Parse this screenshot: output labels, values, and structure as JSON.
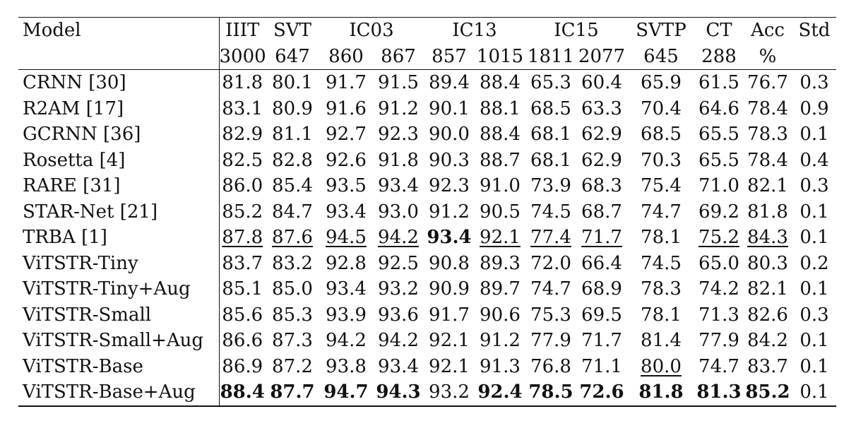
{
  "table": {
    "header_row1": [
      {
        "label": "Model",
        "span": 1
      },
      {
        "label": "IIIT",
        "span": 1
      },
      {
        "label": "SVT",
        "span": 1
      },
      {
        "label": "IC03",
        "span": 2
      },
      {
        "label": "IC13",
        "span": 2
      },
      {
        "label": "IC15",
        "span": 2
      },
      {
        "label": "SVTP",
        "span": 1
      },
      {
        "label": "CT",
        "span": 1
      },
      {
        "label": "Acc",
        "span": 1
      },
      {
        "label": "Std",
        "span": 1
      }
    ],
    "header_row2": [
      "",
      "3000",
      "647",
      "860",
      "867",
      "857",
      "1015",
      "1811",
      "2077",
      "645",
      "288",
      "%",
      ""
    ],
    "rows": [
      {
        "model": "CRNN [30]",
        "values": [
          "81.8",
          "80.1",
          "91.7",
          "91.5",
          "89.4",
          "88.4",
          "65.3",
          "60.4",
          "65.9",
          "61.5",
          "76.7",
          "0.3"
        ],
        "bold": [],
        "underline": []
      },
      {
        "model": "R2AM [17]",
        "values": [
          "83.1",
          "80.9",
          "91.6",
          "91.2",
          "90.1",
          "88.1",
          "68.5",
          "63.3",
          "70.4",
          "64.6",
          "78.4",
          "0.9"
        ],
        "bold": [],
        "underline": []
      },
      {
        "model": "GCRNN [36]",
        "values": [
          "82.9",
          "81.1",
          "92.7",
          "92.3",
          "90.0",
          "88.4",
          "68.1",
          "62.9",
          "68.5",
          "65.5",
          "78.3",
          "0.1"
        ],
        "bold": [],
        "underline": []
      },
      {
        "model": "Rosetta [4]",
        "values": [
          "82.5",
          "82.8",
          "92.6",
          "91.8",
          "90.3",
          "88.7",
          "68.1",
          "62.9",
          "70.3",
          "65.5",
          "78.4",
          "0.4"
        ],
        "bold": [],
        "underline": []
      },
      {
        "model": "RARE [31]",
        "values": [
          "86.0",
          "85.4",
          "93.5",
          "93.4",
          "92.3",
          "91.0",
          "73.9",
          "68.3",
          "75.4",
          "71.0",
          "82.1",
          "0.3"
        ],
        "bold": [],
        "underline": []
      },
      {
        "model": "STAR-Net [21]",
        "values": [
          "85.2",
          "84.7",
          "93.4",
          "93.0",
          "91.2",
          "90.5",
          "74.5",
          "68.7",
          "74.7",
          "69.2",
          "81.8",
          "0.1"
        ],
        "bold": [],
        "underline": []
      },
      {
        "model": "TRBA [1]",
        "values": [
          "87.8",
          "87.6",
          "94.5",
          "94.2",
          "93.4",
          "92.1",
          "77.4",
          "71.7",
          "78.1",
          "75.2",
          "84.3",
          "0.1"
        ],
        "bold": [
          4
        ],
        "underline": [
          0,
          1,
          2,
          3,
          5,
          6,
          7,
          9,
          10
        ]
      },
      {
        "model": "ViTSTR-Tiny",
        "values": [
          "83.7",
          "83.2",
          "92.8",
          "92.5",
          "90.8",
          "89.3",
          "72.0",
          "66.4",
          "74.5",
          "65.0",
          "80.3",
          "0.2"
        ],
        "bold": [],
        "underline": []
      },
      {
        "model": "ViTSTR-Tiny+Aug",
        "values": [
          "85.1",
          "85.0",
          "93.4",
          "93.2",
          "90.9",
          "89.7",
          "74.7",
          "68.9",
          "78.3",
          "74.2",
          "82.1",
          "0.1"
        ],
        "bold": [],
        "underline": []
      },
      {
        "model": "ViTSTR-Small",
        "values": [
          "85.6",
          "85.3",
          "93.9",
          "93.6",
          "91.7",
          "90.6",
          "75.3",
          "69.5",
          "78.1",
          "71.3",
          "82.6",
          "0.3"
        ],
        "bold": [],
        "underline": []
      },
      {
        "model": "ViTSTR-Small+Aug",
        "values": [
          "86.6",
          "87.3",
          "94.2",
          "94.2",
          "92.1",
          "91.2",
          "77.9",
          "71.7",
          "81.4",
          "77.9",
          "84.2",
          "0.1"
        ],
        "bold": [],
        "underline": []
      },
      {
        "model": "ViTSTR-Base",
        "values": [
          "86.9",
          "87.2",
          "93.8",
          "93.4",
          "92.1",
          "91.3",
          "76.8",
          "71.1",
          "80.0",
          "74.7",
          "83.7",
          "0.1"
        ],
        "bold": [],
        "underline": [
          8
        ]
      },
      {
        "model": "ViTSTR-Base+Aug",
        "values": [
          "88.4",
          "87.7",
          "94.7",
          "94.3",
          "93.2",
          "92.4",
          "78.5",
          "72.6",
          "81.8",
          "81.3",
          "85.2",
          "0.1"
        ],
        "bold": [
          0,
          1,
          2,
          3,
          5,
          6,
          7,
          8,
          9,
          10
        ],
        "underline": []
      }
    ]
  }
}
